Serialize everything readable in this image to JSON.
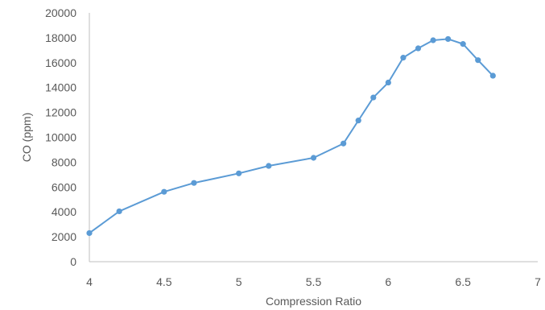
{
  "chart_data": {
    "type": "line",
    "title": "",
    "xlabel": "Compression Ratio",
    "ylabel": "CO (ppm)",
    "xlim": [
      4,
      7
    ],
    "ylim": [
      0,
      20000
    ],
    "x_ticks": [
      "4",
      "4.5",
      "5",
      "5.5",
      "6",
      "6.5",
      "7"
    ],
    "y_ticks": [
      "0",
      "2000",
      "4000",
      "6000",
      "8000",
      "10000",
      "12000",
      "14000",
      "16000",
      "18000",
      "20000"
    ],
    "grid": false,
    "legend": "none",
    "series_color": "#5B9BD5",
    "x": [
      4.0,
      4.2,
      4.5,
      4.7,
      5.0,
      5.2,
      5.5,
      5.7,
      5.8,
      5.9,
      6.0,
      6.1,
      6.2,
      6.3,
      6.4,
      6.5,
      6.6,
      6.7
    ],
    "series": [
      {
        "values": [
          2300,
          4050,
          5620,
          6330,
          7100,
          7700,
          8350,
          9500,
          11350,
          13200,
          14400,
          16400,
          17150,
          17800,
          17900,
          17500,
          16200,
          14950
        ]
      }
    ]
  }
}
